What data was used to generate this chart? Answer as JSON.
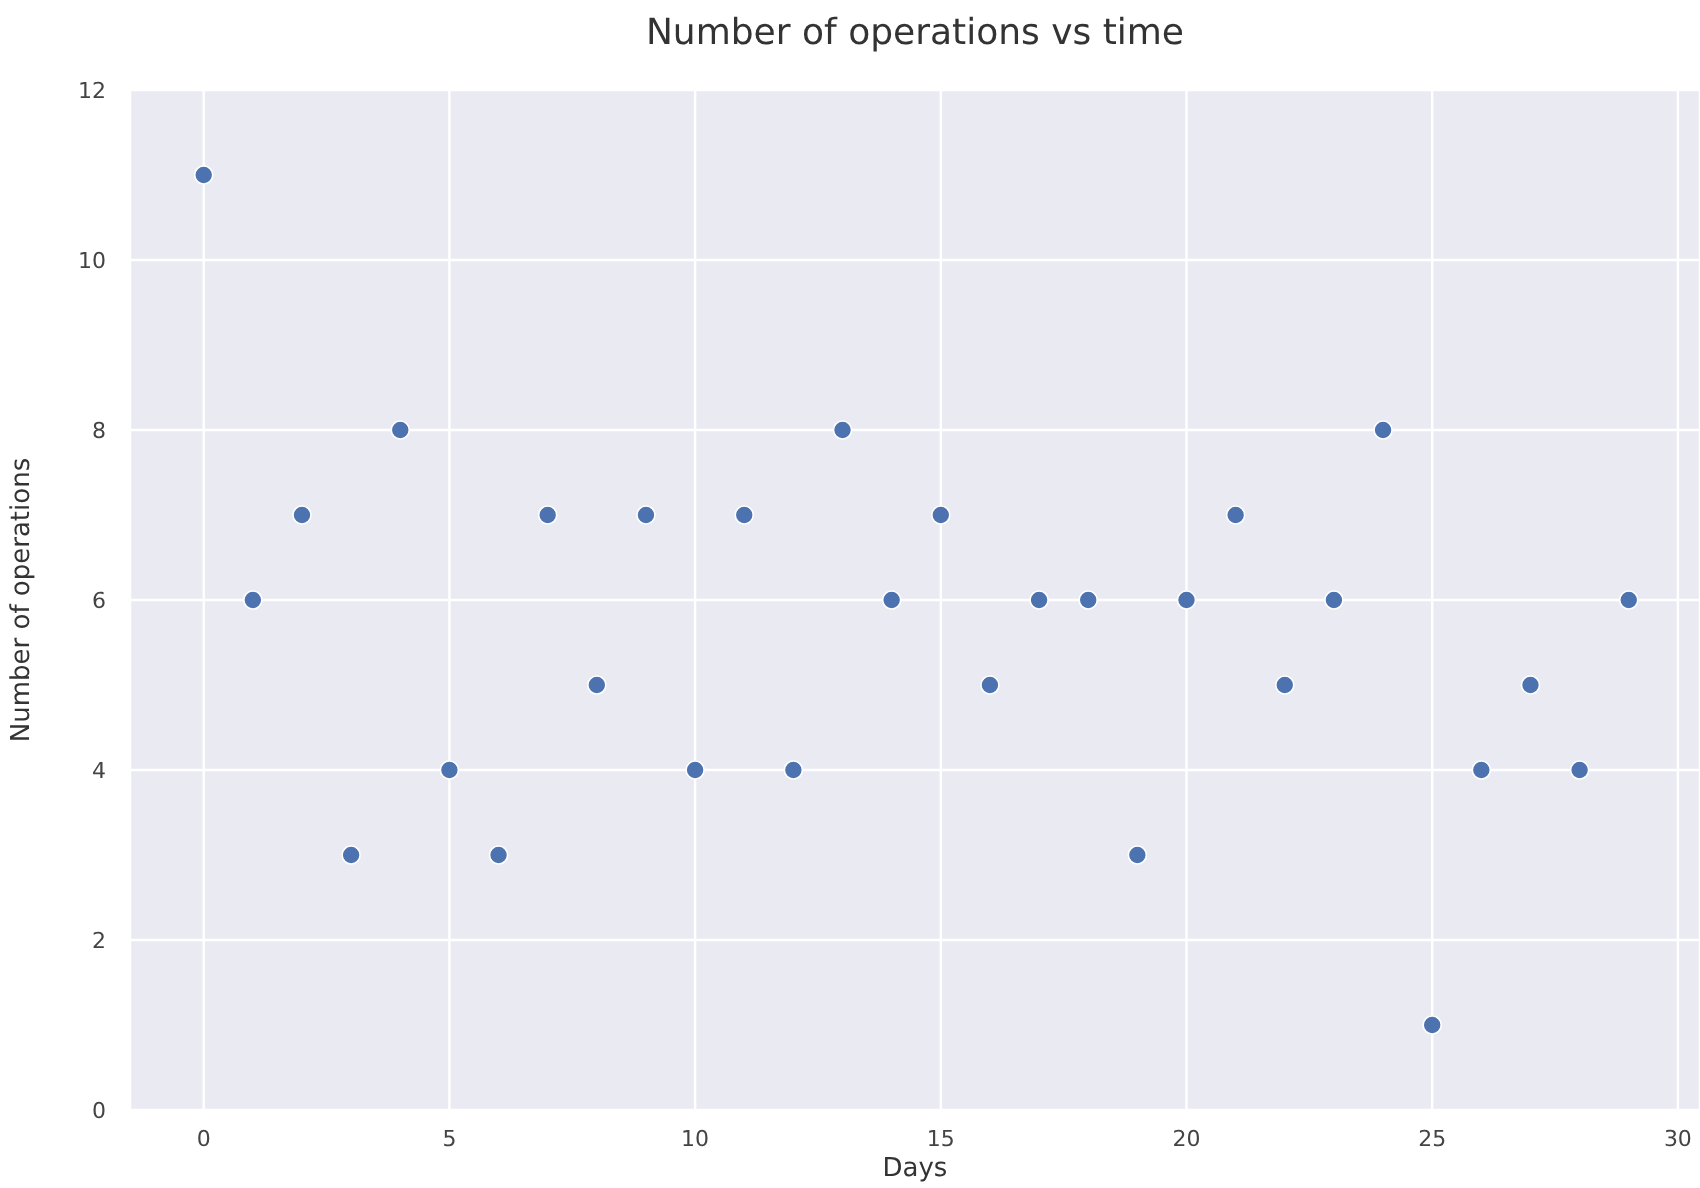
{
  "chart_data": {
    "type": "scatter",
    "title": "Number of operations vs time",
    "xlabel": "Days",
    "ylabel": "Number of operations",
    "x": [
      0,
      1,
      2,
      3,
      4,
      5,
      6,
      7,
      8,
      9,
      10,
      11,
      12,
      13,
      14,
      15,
      16,
      17,
      18,
      19,
      20,
      21,
      22,
      23,
      24,
      25,
      26,
      27,
      28,
      29
    ],
    "series": [
      {
        "color": "#4c72b0",
        "values": [
          11,
          6,
          7,
          3,
          8,
          4,
          3,
          7,
          5,
          7,
          4,
          7,
          4,
          8,
          6,
          7,
          5,
          6,
          6,
          3,
          6,
          7,
          5,
          6,
          8,
          1,
          4,
          5,
          4,
          6
        ]
      }
    ],
    "xlim": [
      -1.5,
      30.45
    ],
    "xticks": [
      0,
      5,
      10,
      15,
      20,
      25,
      30
    ],
    "ylim": [
      0,
      12
    ],
    "yticks": [
      0,
      2,
      4,
      6,
      8,
      10,
      12
    ],
    "grid": true,
    "marker": "circle"
  }
}
